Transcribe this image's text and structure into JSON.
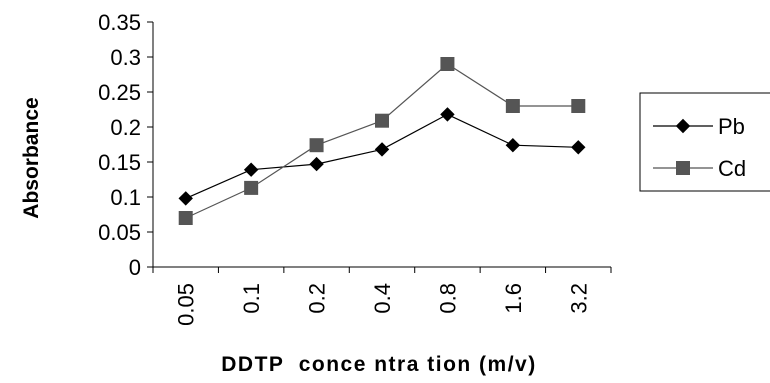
{
  "chart_data": {
    "type": "line",
    "title": "",
    "xlabel": "DDTP  conce ntra tion (m/v)",
    "ylabel": "Absorbance",
    "categories": [
      "0.05",
      "0.1",
      "0.2",
      "0.4",
      "0.8",
      "1.6",
      "3.2"
    ],
    "ylim": [
      0,
      0.35
    ],
    "yticks": [
      "0",
      "0.05",
      "0.1",
      "0.15",
      "0.2",
      "0.25",
      "0.3",
      "0.35"
    ],
    "grid": false,
    "legend_position": "right",
    "series": [
      {
        "name": "Pb",
        "values": [
          0.098,
          0.139,
          0.147,
          0.168,
          0.218,
          0.174,
          0.171
        ],
        "color": "#000000",
        "marker": "diamond"
      },
      {
        "name": "Cd",
        "values": [
          0.07,
          0.113,
          0.174,
          0.209,
          0.29,
          0.23,
          0.23
        ],
        "color": "#555555",
        "marker": "square"
      }
    ]
  }
}
